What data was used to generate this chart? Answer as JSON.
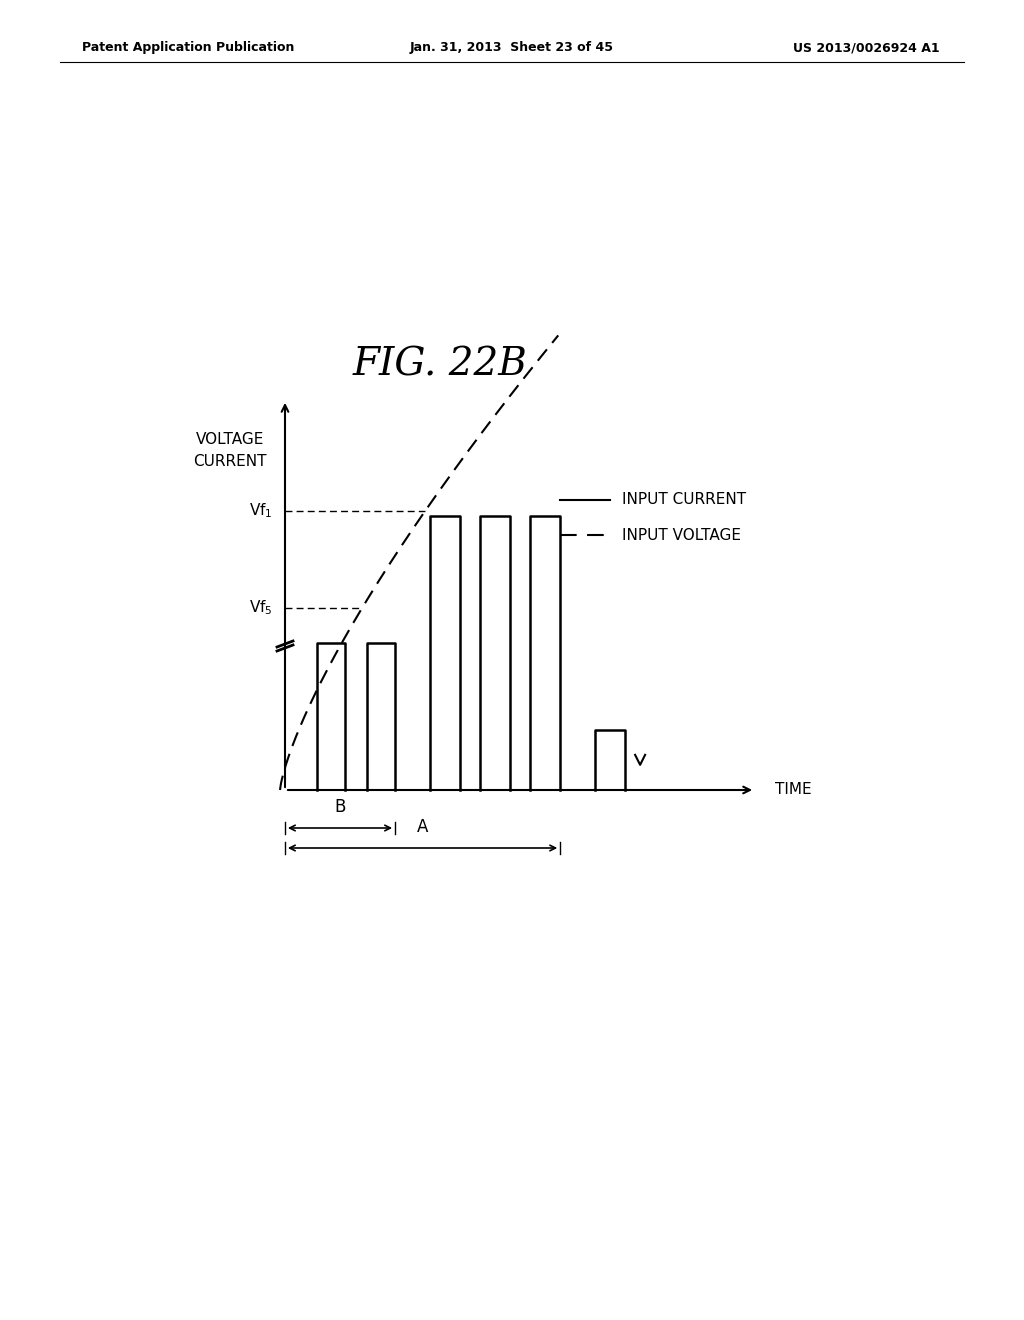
{
  "title": "FIG. 22B",
  "header_left": "Patent Application Publication",
  "header_center": "Jan. 31, 2013  Sheet 23 of 45",
  "header_right": "US 2013/0026924 A1",
  "ylabel_line1": "VOLTAGE",
  "ylabel_line2": "CURRENT",
  "xlabel": "TIME",
  "legend_solid": "INPUT CURRENT",
  "legend_dashed": "INPUT VOLTAGE",
  "vf1_label": "Vf",
  "vf1_sub": "1",
  "vf5_label": "Vf",
  "vf5_sub": "5",
  "label_A": "A",
  "label_B": "B",
  "bg_color": "#ffffff",
  "line_color": "#000000"
}
